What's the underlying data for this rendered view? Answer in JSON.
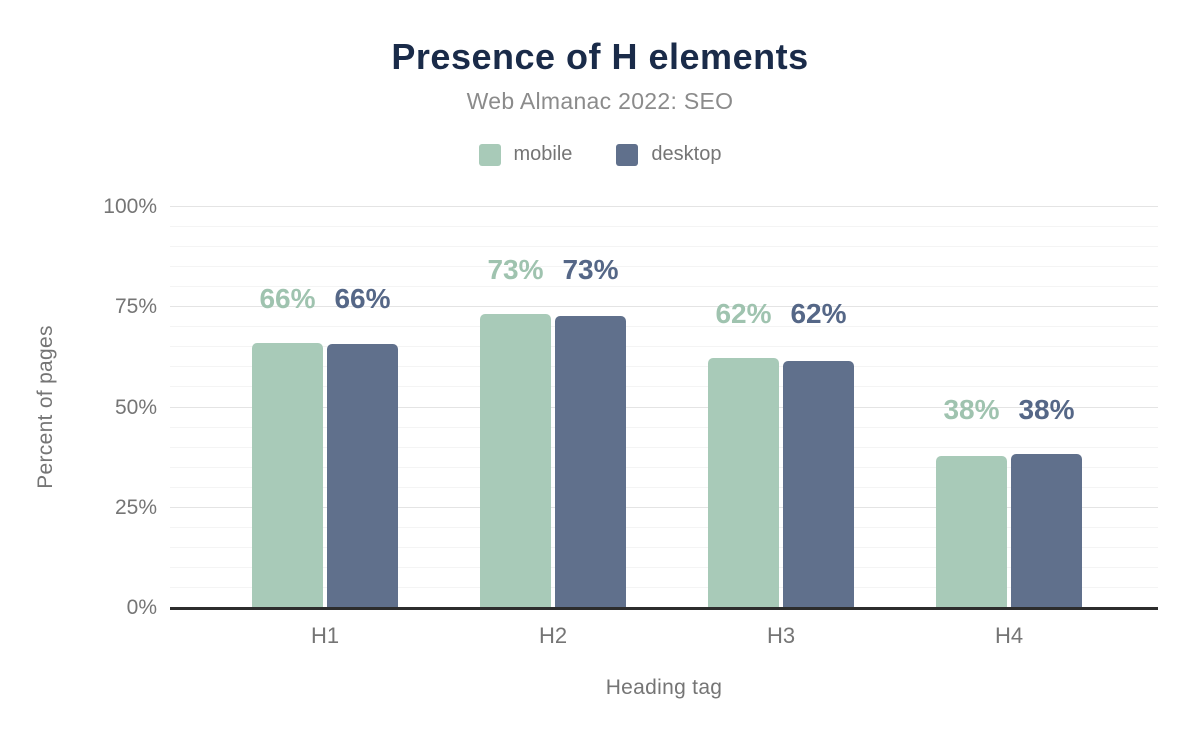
{
  "chart_data": {
    "type": "bar",
    "title": "Presence of H elements",
    "subtitle": "Web Almanac 2022: SEO",
    "xlabel": "Heading tag",
    "ylabel": "Percent of pages",
    "categories": [
      "H1",
      "H2",
      "H3",
      "H4"
    ],
    "series": [
      {
        "name": "mobile",
        "color": "#a8cab8",
        "label_color": "#9fc3af",
        "values": [
          66,
          73,
          62,
          38
        ],
        "value_labels": [
          "66%",
          "73%",
          "62%",
          "38%"
        ],
        "bar_heights_pct": [
          66.0,
          73.4,
          62.3,
          38.0
        ]
      },
      {
        "name": "desktop",
        "color": "#60708c",
        "label_color": "#556787",
        "values": [
          66,
          73,
          62,
          38
        ],
        "value_labels": [
          "66%",
          "73%",
          "62%",
          "38%"
        ],
        "bar_heights_pct": [
          65.8,
          72.7,
          61.6,
          38.4
        ]
      }
    ],
    "ylim": [
      0,
      100
    ],
    "yticks": [
      0,
      25,
      50,
      75,
      100
    ],
    "ytick_labels": [
      "0%",
      "25%",
      "50%",
      "75%",
      "100%"
    ],
    "grid": {
      "show": true,
      "minor_step_pct": 5,
      "major_step_pct": 25
    },
    "legend_position": "top",
    "value_labels_shown": true
  },
  "styles": {
    "background": "#ffffff",
    "title_color": "#1a2b49",
    "subtitle_color": "#8b8b8b",
    "axis_text_color": "#757575",
    "grid_minor_color": "#f4f4f4",
    "grid_major_color": "#e4e4e4",
    "axis_line_color": "#2d2d2d"
  }
}
